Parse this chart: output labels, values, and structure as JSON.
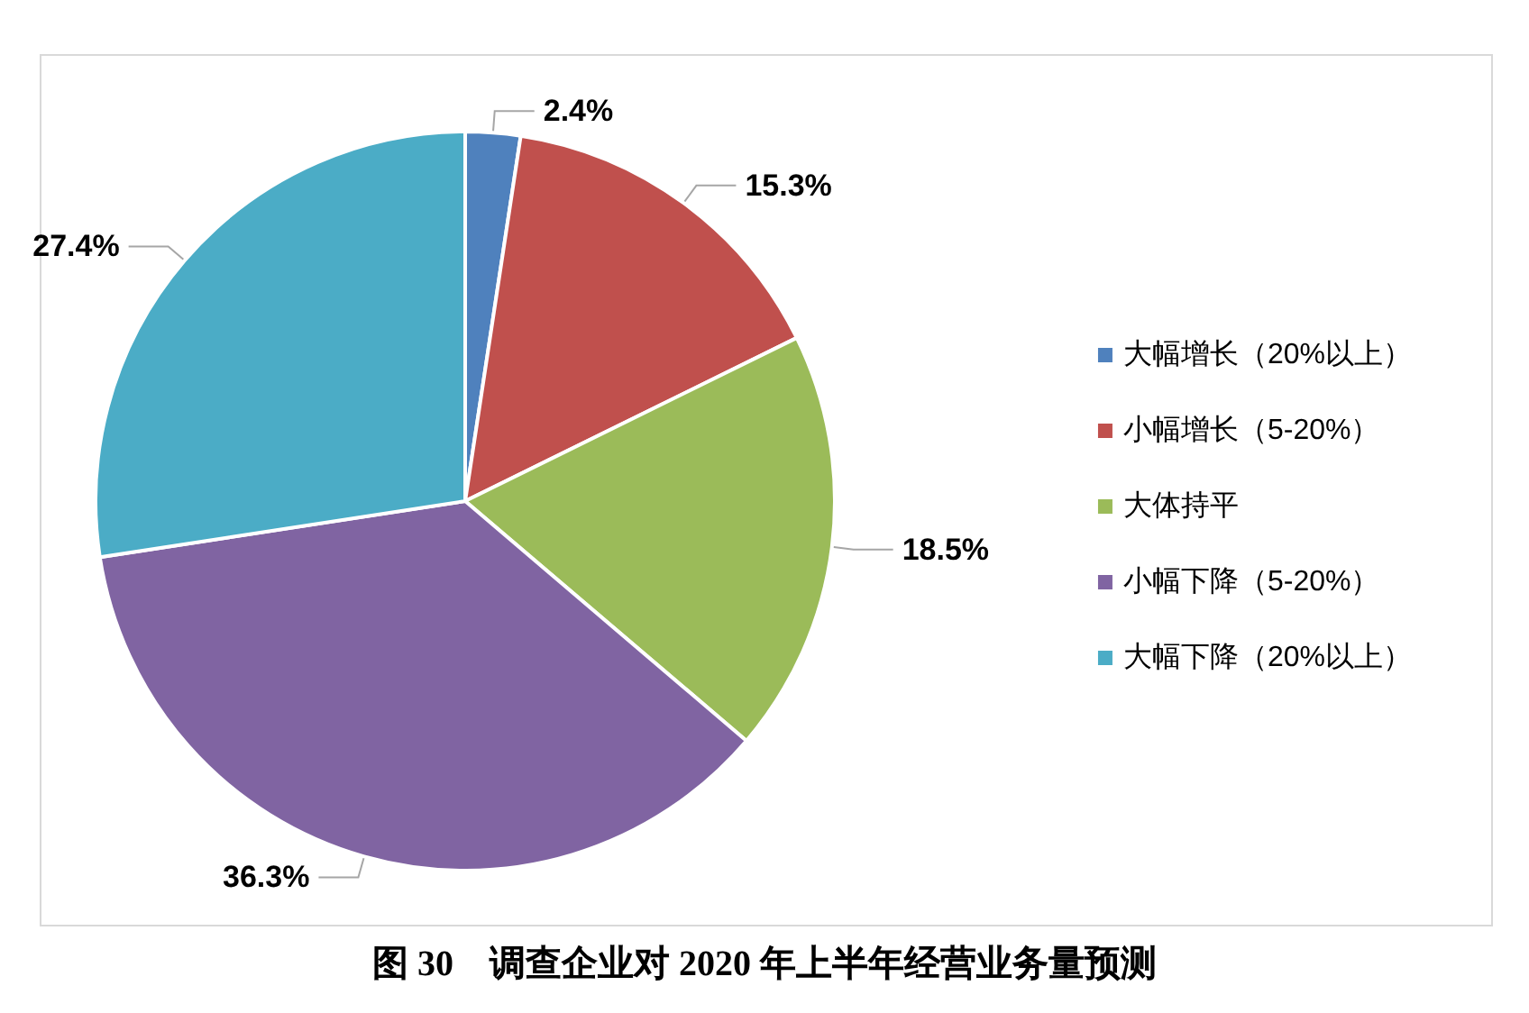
{
  "chart_data": {
    "type": "pie",
    "title": "图 30　调查企业对 2020 年上半年经营业务量预测",
    "categories": [
      "大幅增长（20%以上）",
      "小幅增长（5-20%）",
      "大体持平",
      "小幅下降（5-20%）",
      "大幅下降（20%以上）"
    ],
    "values": [
      2.4,
      15.3,
      18.5,
      36.3,
      27.4
    ],
    "value_labels": [
      "2.4%",
      "15.3%",
      "18.5%",
      "36.3%",
      "27.4%"
    ],
    "colors": [
      "#4f81bd",
      "#c0504d",
      "#9bbb59",
      "#8064a2",
      "#4bacc6"
    ],
    "legend": "right"
  }
}
